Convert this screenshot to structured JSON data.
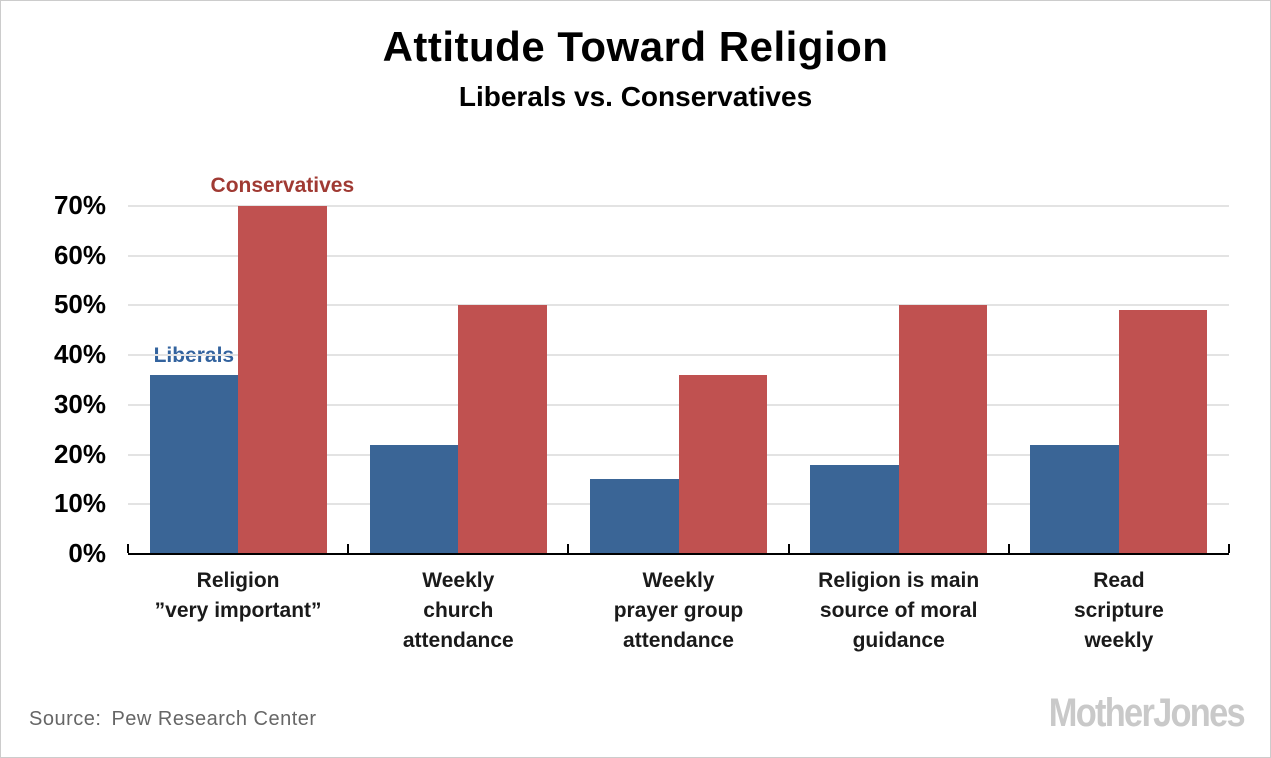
{
  "header": {
    "title": "Attitude Toward Religion",
    "subtitle": "Liberals vs. Conservatives"
  },
  "footer": {
    "source_label": "Source:",
    "source_text": "Pew Research Center",
    "branding": "MotherJones"
  },
  "colors": {
    "liberals_bar": "#3A6596",
    "conservatives_bar": "#C05150",
    "liberals_label_text": "#33639E",
    "conservatives_label_text": "#A03A33",
    "gridline": "#E3E3E3",
    "axis": "#000000",
    "source_text": "#666666",
    "branding_text": "#C9C9C9"
  },
  "chart_data": {
    "type": "bar",
    "title": "Attitude Toward Religion",
    "subtitle": "Liberals vs. Conservatives",
    "categories": [
      "Religion\n”very important”",
      "Weekly\nchurch\nattendance",
      "Weekly\nprayer group\nattendance",
      "Religion is main\nsource of moral\nguidance",
      "Read\nscripture\nweekly"
    ],
    "series": [
      {
        "name": "Liberals",
        "color": "#3A6596",
        "label_color": "#33639E",
        "values": [
          36,
          22,
          15,
          18,
          22
        ]
      },
      {
        "name": "Conservatives",
        "color": "#C05150",
        "label_color": "#A03A33",
        "values": [
          70,
          50,
          36,
          50,
          49
        ]
      }
    ],
    "xlabel": "",
    "ylabel": "",
    "ylim": [
      0,
      70
    ],
    "ytick_step": 10,
    "ytick_suffix": "%",
    "grid": true,
    "legend_position": "inline-above-first-group"
  }
}
